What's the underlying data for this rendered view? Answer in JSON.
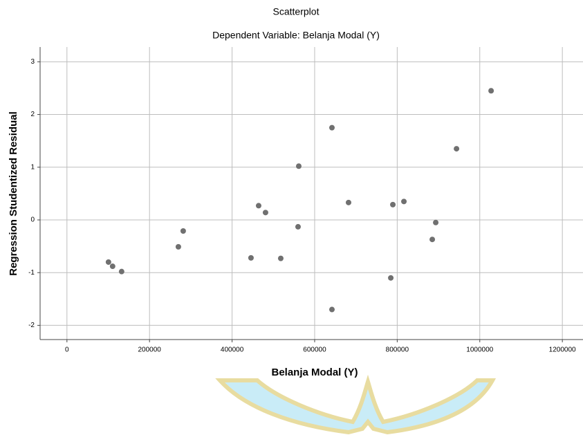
{
  "chart_data": {
    "type": "scatter",
    "title": "Scatterplot",
    "subtitle": "Dependent Variable: Belanja Modal (Y)",
    "x_label": "Belanja Modal (Y)",
    "y_label": "Regression Studentized Residual",
    "x": [
      100600,
      110600,
      132400,
      269900,
      281600,
      445800,
      464300,
      481000,
      517900,
      559800,
      561500,
      641900,
      641900,
      682100,
      784400,
      789400,
      816200,
      884900,
      893300,
      943600,
      1027400
    ],
    "series": [
      {
        "color": "#707070",
        "values": [
          -0.8,
          -0.88,
          -0.98,
          -0.51,
          -0.21,
          -0.72,
          0.27,
          0.14,
          -0.73,
          -0.13,
          1.02,
          1.75,
          -1.7,
          0.33,
          -1.1,
          0.29,
          0.35,
          -0.37,
          -0.05,
          1.35,
          2.45
        ]
      }
    ],
    "xlim": [
      -65000,
      1250000
    ],
    "ylim": [
      -2.27,
      3.28
    ],
    "xticks": [
      0,
      200000,
      400000,
      600000,
      800000,
      1000000,
      1200000
    ],
    "yticks": [
      -2,
      -1,
      0,
      1,
      2,
      3
    ],
    "grid": true
  }
}
